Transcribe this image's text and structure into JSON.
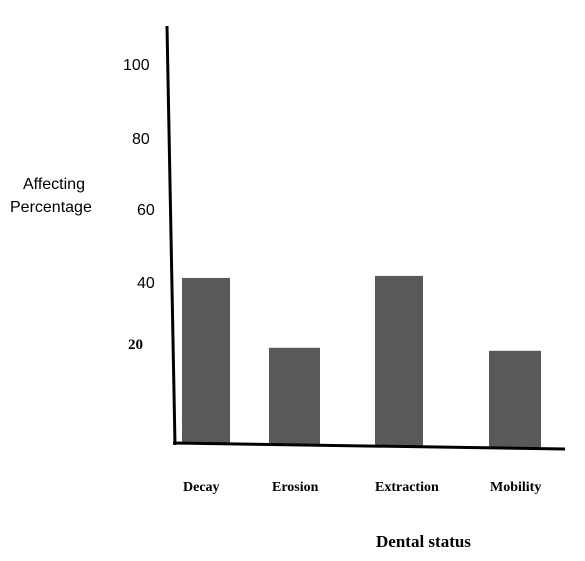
{
  "chart_data": {
    "type": "bar",
    "title": "",
    "xlabel": "Dental status",
    "ylabel": [
      "Affecting",
      "Percentage"
    ],
    "categories": [
      "Decay",
      "Erosion",
      "Extraction",
      "Mobility"
    ],
    "values": [
      41,
      24,
      42,
      24
    ],
    "yticks": [
      "100",
      "80",
      "60",
      "40",
      "20"
    ],
    "ylim": [
      0,
      110
    ],
    "grid": false,
    "legend": "none",
    "bar_color": "#595959",
    "axis_color": "#000000"
  }
}
